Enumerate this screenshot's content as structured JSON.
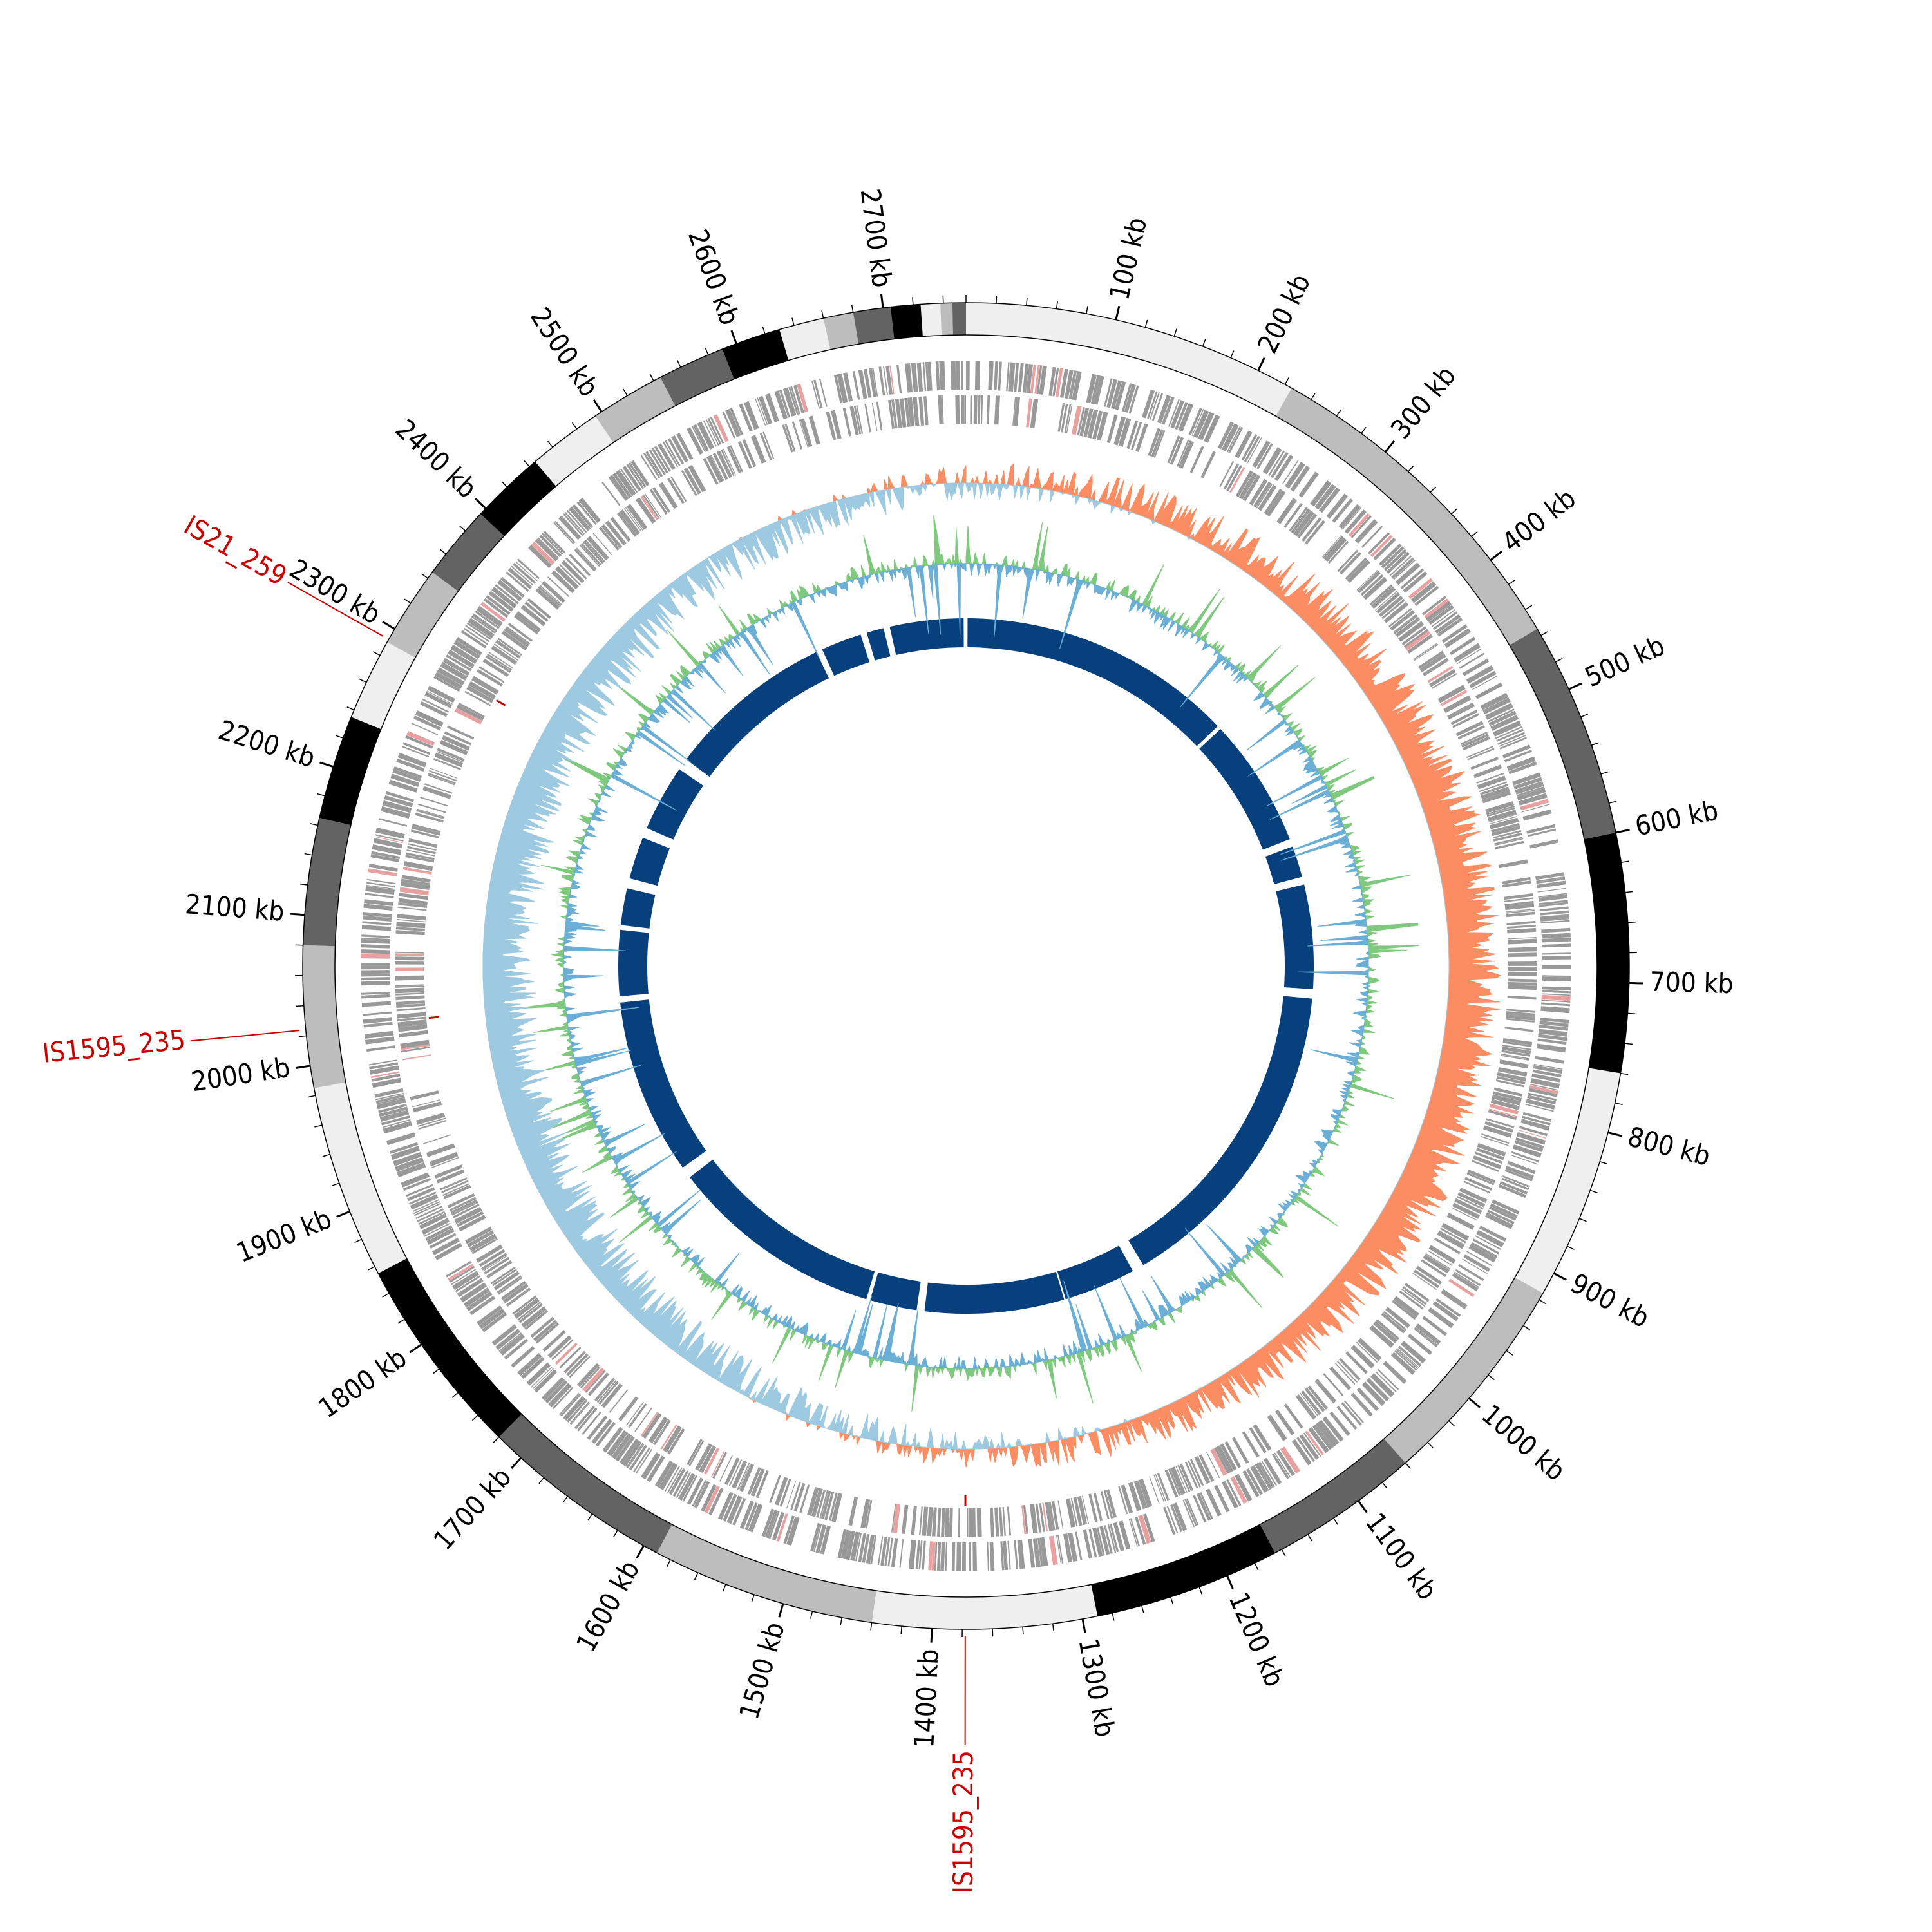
{
  "genome": {
    "length_kb": 2755,
    "unit": "kb"
  },
  "colors": {
    "karyotype_shades": [
      "#efefef",
      "#bdbdbd",
      "#636363",
      "#000000"
    ],
    "gene_block": "#999999",
    "gene_highlight": "#e8a0a0",
    "gc_skew_positive": "#fc8d62",
    "gc_skew_negative": "#9ecae1",
    "gc_content_positive": "#7fc97f",
    "gc_content_negative": "#6baed6",
    "synteny_block": "#08407e",
    "insertion_sequence": "#cc0000",
    "ticks": "#000000"
  },
  "scale": {
    "major_tick_step_kb": 100,
    "minor_tick_step_kb": 20,
    "major_labels": [
      "100 kb",
      "200 kb",
      "300 kb",
      "400 kb",
      "500 kb",
      "600 kb",
      "700 kb",
      "800 kb",
      "900 kb",
      "1000 kb",
      "1100 kb",
      "1200 kb",
      "1300 kb",
      "1400 kb",
      "1500 kb",
      "1600 kb",
      "1700 kb",
      "1800 kb",
      "1900 kb",
      "2000 kb",
      "2100 kb",
      "2200 kb",
      "2300 kb",
      "2400 kb",
      "2500 kb",
      "2600 kb",
      "2700 kb"
    ],
    "major_positions_kb": [
      100,
      200,
      300,
      400,
      500,
      600,
      700,
      800,
      900,
      1000,
      1100,
      1200,
      1300,
      1400,
      1500,
      1600,
      1700,
      1800,
      1900,
      2000,
      2100,
      2200,
      2300,
      2400,
      2500,
      2600,
      2700
    ]
  },
  "karyotype_bands": [
    {
      "start": 0,
      "end": 225,
      "shade": 0
    },
    {
      "start": 225,
      "end": 455,
      "shade": 1
    },
    {
      "start": 455,
      "end": 600,
      "shade": 2
    },
    {
      "start": 600,
      "end": 760,
      "shade": 3
    },
    {
      "start": 760,
      "end": 915,
      "shade": 0
    },
    {
      "start": 915,
      "end": 1060,
      "shade": 1
    },
    {
      "start": 1060,
      "end": 1165,
      "shade": 2
    },
    {
      "start": 1165,
      "end": 1290,
      "shade": 3
    },
    {
      "start": 1290,
      "end": 1440,
      "shade": 0
    },
    {
      "start": 1440,
      "end": 1590,
      "shade": 1
    },
    {
      "start": 1590,
      "end": 1720,
      "shade": 2
    },
    {
      "start": 1720,
      "end": 1855,
      "shade": 3
    },
    {
      "start": 1855,
      "end": 1985,
      "shade": 0
    },
    {
      "start": 1985,
      "end": 2080,
      "shade": 1
    },
    {
      "start": 2080,
      "end": 2165,
      "shade": 2
    },
    {
      "start": 2165,
      "end": 2235,
      "shade": 3
    },
    {
      "start": 2235,
      "end": 2290,
      "shade": 0
    },
    {
      "start": 2290,
      "end": 2345,
      "shade": 1
    },
    {
      "start": 2345,
      "end": 2395,
      "shade": 2
    },
    {
      "start": 2395,
      "end": 2445,
      "shade": 3
    },
    {
      "start": 2445,
      "end": 2495,
      "shade": 0
    },
    {
      "start": 2495,
      "end": 2545,
      "shade": 1
    },
    {
      "start": 2545,
      "end": 2590,
      "shade": 2
    },
    {
      "start": 2590,
      "end": 2630,
      "shade": 3
    },
    {
      "start": 2630,
      "end": 2660,
      "shade": 0
    },
    {
      "start": 2660,
      "end": 2680,
      "shade": 1
    },
    {
      "start": 2680,
      "end": 2705,
      "shade": 2
    },
    {
      "start": 2705,
      "end": 2725,
      "shade": 3
    },
    {
      "start": 2725,
      "end": 2738,
      "shade": 0
    },
    {
      "start": 2738,
      "end": 2746,
      "shade": 1
    },
    {
      "start": 2746,
      "end": 2755,
      "shade": 2
    }
  ],
  "synteny_blocks": [
    {
      "start": 2,
      "end": 355
    },
    {
      "start": 360,
      "end": 525
    },
    {
      "start": 535,
      "end": 575
    },
    {
      "start": 585,
      "end": 718
    },
    {
      "start": 730,
      "end": 1143
    },
    {
      "start": 1158,
      "end": 1250
    },
    {
      "start": 1252,
      "end": 1430
    },
    {
      "start": 1440,
      "end": 1500
    },
    {
      "start": 1505,
      "end": 1780
    },
    {
      "start": 1795,
      "end": 2020
    },
    {
      "start": 2028,
      "end": 2112
    },
    {
      "start": 2118,
      "end": 2165
    },
    {
      "start": 2178,
      "end": 2232
    },
    {
      "start": 2245,
      "end": 2330
    },
    {
      "start": 2345,
      "end": 2560
    },
    {
      "start": 2568,
      "end": 2620
    },
    {
      "start": 2628,
      "end": 2650
    },
    {
      "start": 2658,
      "end": 2752
    }
  ],
  "insertion_sequences": [
    {
      "name": "IS1595_235",
      "position_kb": 1378
    },
    {
      "name": "IS21_259",
      "position_kb": 2292
    },
    {
      "name": "IS1595_235",
      "position_kb": 2024
    }
  ]
}
